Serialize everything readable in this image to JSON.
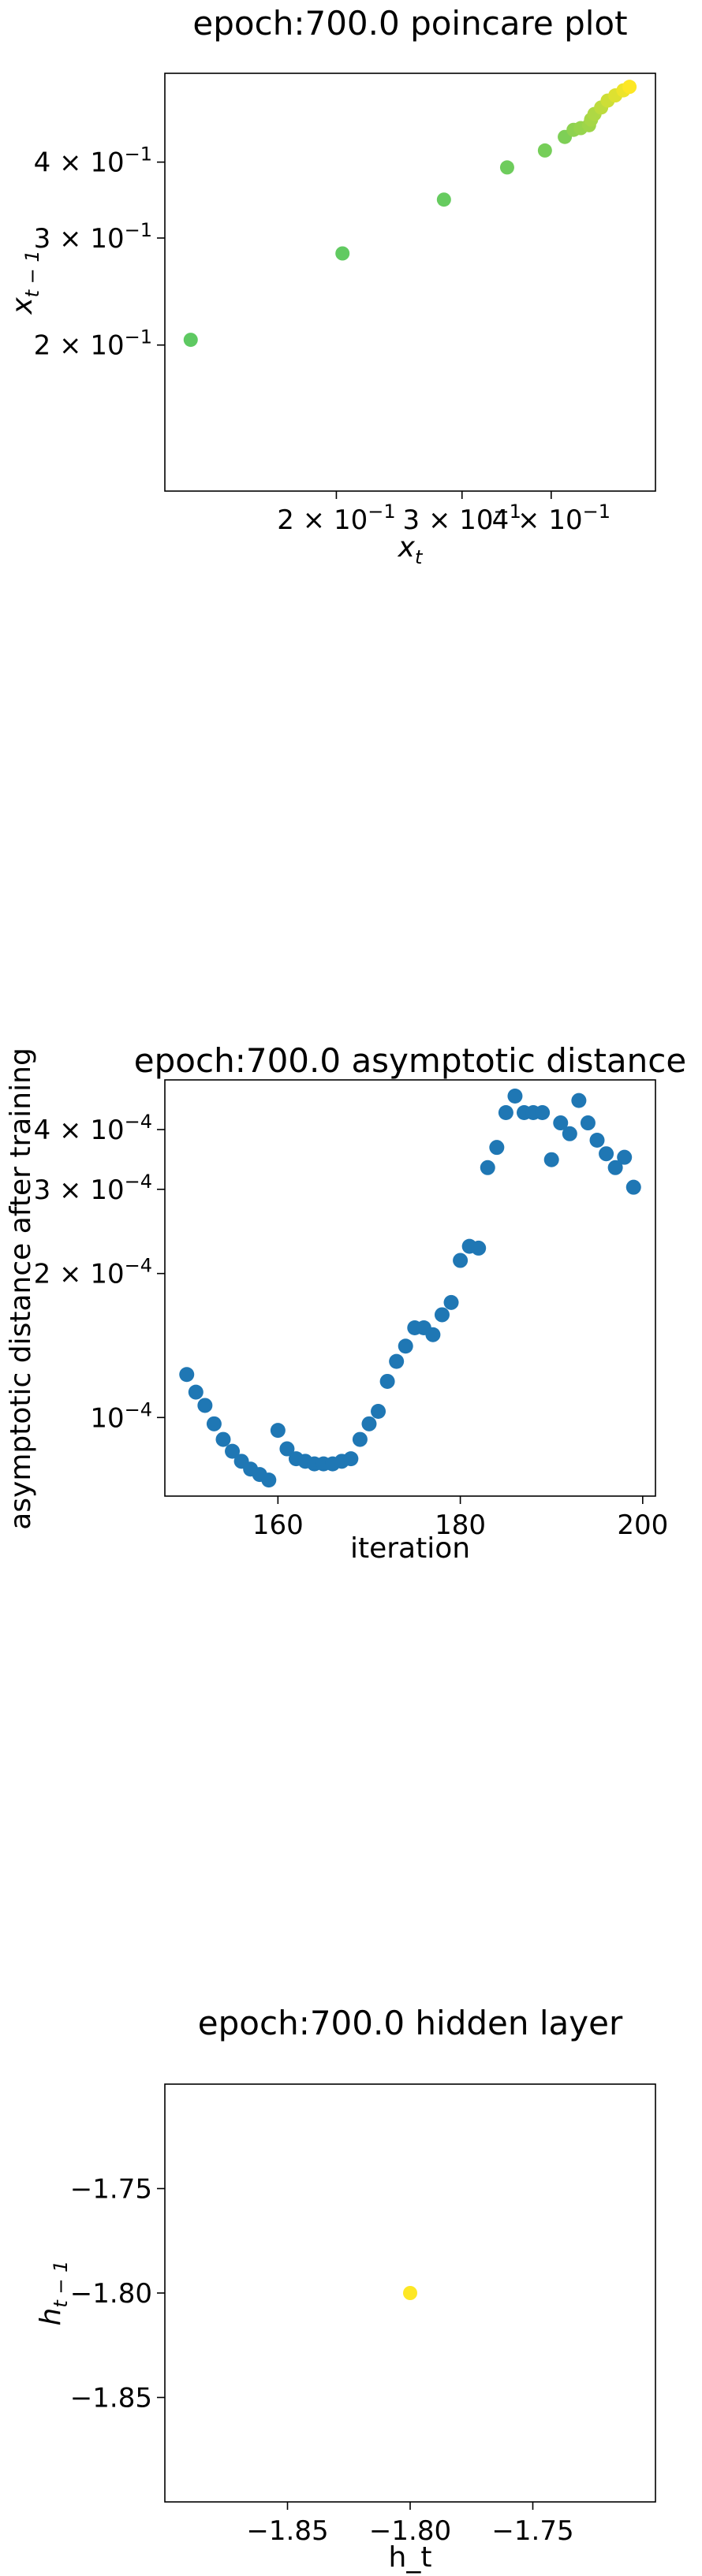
{
  "chart_data": [
    {
      "type": "scatter",
      "title": "epoch:700.0 poincare plot",
      "xlabel": "x_t",
      "ylabel": "x_{t-1}",
      "xscale": "log",
      "yscale": "log",
      "xlim": [
        0.115,
        0.56
      ],
      "ylim": [
        0.115,
        0.56
      ],
      "x_ticks": [
        {
          "value": 0.2,
          "mant": "2",
          "exp": "−1"
        },
        {
          "value": 0.3,
          "mant": "3",
          "exp": "−1"
        },
        {
          "value": 0.4,
          "mant": "4",
          "exp": "−1"
        }
      ],
      "y_ticks": [
        {
          "value": 0.2,
          "mant": "2",
          "exp": "−1"
        },
        {
          "value": 0.3,
          "mant": "3",
          "exp": "−1"
        },
        {
          "value": 0.4,
          "mant": "4",
          "exp": "−1"
        }
      ],
      "colormap": [
        "#5ec962",
        "#fde725"
      ],
      "points": [
        {
          "x": 0.125,
          "y": 0.204,
          "c": 0.0
        },
        {
          "x": 0.204,
          "y": 0.283,
          "c": 0.02
        },
        {
          "x": 0.283,
          "y": 0.347,
          "c": 0.05
        },
        {
          "x": 0.347,
          "y": 0.392,
          "c": 0.1
        },
        {
          "x": 0.392,
          "y": 0.418,
          "c": 0.15
        },
        {
          "x": 0.418,
          "y": 0.44,
          "c": 0.2
        },
        {
          "x": 0.43,
          "y": 0.452,
          "c": 0.3
        },
        {
          "x": 0.44,
          "y": 0.455,
          "c": 0.35
        },
        {
          "x": 0.452,
          "y": 0.46,
          "c": 0.4
        },
        {
          "x": 0.455,
          "y": 0.47,
          "c": 0.45
        },
        {
          "x": 0.46,
          "y": 0.48,
          "c": 0.5
        },
        {
          "x": 0.47,
          "y": 0.492,
          "c": 0.6
        },
        {
          "x": 0.48,
          "y": 0.505,
          "c": 0.7
        },
        {
          "x": 0.492,
          "y": 0.515,
          "c": 0.8
        },
        {
          "x": 0.505,
          "y": 0.525,
          "c": 0.9
        },
        {
          "x": 0.515,
          "y": 0.532,
          "c": 1.0
        }
      ]
    },
    {
      "type": "scatter",
      "title": "epoch:700.0 asymptotic distance",
      "xlabel": "iteration",
      "ylabel": "asymptotic distance after training",
      "xscale": "linear",
      "yscale": "log",
      "xlim": [
        147.6,
        201.4
      ],
      "ylim": [
        6.85e-05,
        0.000508
      ],
      "x_ticks": [
        {
          "value": 160,
          "label": "160"
        },
        {
          "value": 180,
          "label": "180"
        },
        {
          "value": 200,
          "label": "200"
        }
      ],
      "y_ticks": [
        {
          "value": 0.0001,
          "mant": "10",
          "exp": "−4"
        },
        {
          "value": 0.0002,
          "mant": "2 × 10",
          "exp": "−4"
        },
        {
          "value": 0.0003,
          "mant": "3 × 10",
          "exp": "−4"
        },
        {
          "value": 0.0004,
          "mant": "4 × 10",
          "exp": "−4"
        }
      ],
      "color": "#1f77b4",
      "x": [
        150,
        151,
        152,
        153,
        154,
        155,
        156,
        157,
        158,
        159,
        160,
        161,
        162,
        163,
        164,
        165,
        166,
        167,
        168,
        169,
        170,
        171,
        172,
        173,
        174,
        175,
        176,
        177,
        178,
        179,
        180,
        181,
        182,
        183,
        184,
        185,
        186,
        187,
        188,
        189,
        190,
        191,
        192,
        193,
        194,
        195,
        196,
        197,
        198,
        199
      ],
      "y": [
        0.000123,
        0.000113,
        0.000106,
        9.7e-05,
        9e-05,
        8.5e-05,
        8.1e-05,
        7.8e-05,
        7.6e-05,
        7.4e-05,
        9.4e-05,
        8.6e-05,
        8.2e-05,
        8.1e-05,
        8e-05,
        8e-05,
        8e-05,
        8.1e-05,
        8.2e-05,
        9e-05,
        9.7e-05,
        0.000103,
        0.000119,
        0.000131,
        0.000141,
        0.000154,
        0.000154,
        0.000149,
        0.000164,
        0.000174,
        0.000213,
        0.000228,
        0.000226,
        0.000333,
        0.000367,
        0.000434,
        0.00047,
        0.000434,
        0.000434,
        0.000434,
        0.000346,
        0.000413,
        0.000392,
        0.00046,
        0.000413,
        0.00038,
        0.000356,
        0.000333,
        0.00035,
        0.000303
      ]
    },
    {
      "type": "scatter",
      "title": "epoch:700.0 hidden layer",
      "xlabel": "h_t",
      "ylabel": "h_{t-1}",
      "xscale": "linear",
      "yscale": "linear",
      "xlim": [
        -1.9,
        -1.7
      ],
      "ylim": [
        -1.9,
        -1.7
      ],
      "x_ticks": [
        {
          "value": -1.85,
          "label": "−1.85"
        },
        {
          "value": -1.8,
          "label": "−1.80"
        },
        {
          "value": -1.75,
          "label": "−1.75"
        }
      ],
      "y_ticks": [
        {
          "value": -1.75,
          "label": "−1.75"
        },
        {
          "value": -1.8,
          "label": "−1.80"
        },
        {
          "value": -1.85,
          "label": "−1.85"
        }
      ],
      "color": "#fde725",
      "points": [
        {
          "x": -1.8,
          "y": -1.8
        }
      ]
    }
  ]
}
